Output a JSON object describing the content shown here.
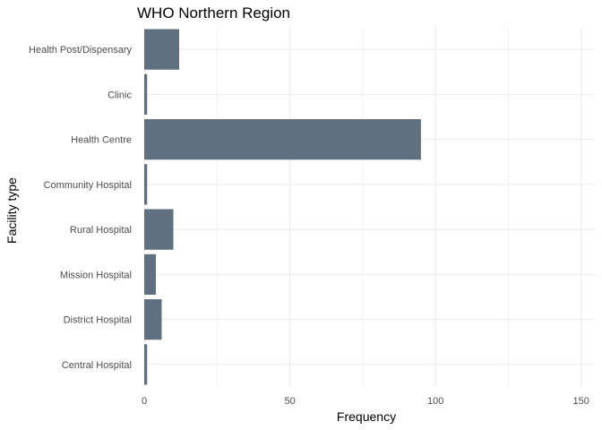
{
  "chart_data": {
    "type": "bar",
    "orientation": "horizontal",
    "title": "WHO Northern Region",
    "xlabel": "Frequency",
    "ylabel": "Facility type",
    "categories": [
      "Central Hospital",
      "District Hospital",
      "Mission Hospital",
      "Rural Hospital",
      "Community Hospital",
      "Health Centre",
      "Clinic",
      "Health Post/Dispensary"
    ],
    "values": [
      1,
      6,
      4,
      10,
      1,
      95,
      1,
      12
    ],
    "xlim": [
      0,
      155
    ],
    "xticks": [
      0,
      50,
      100,
      150
    ],
    "grid": true,
    "bar_color": "#5f7080",
    "grid_color": "#ebebeb"
  }
}
